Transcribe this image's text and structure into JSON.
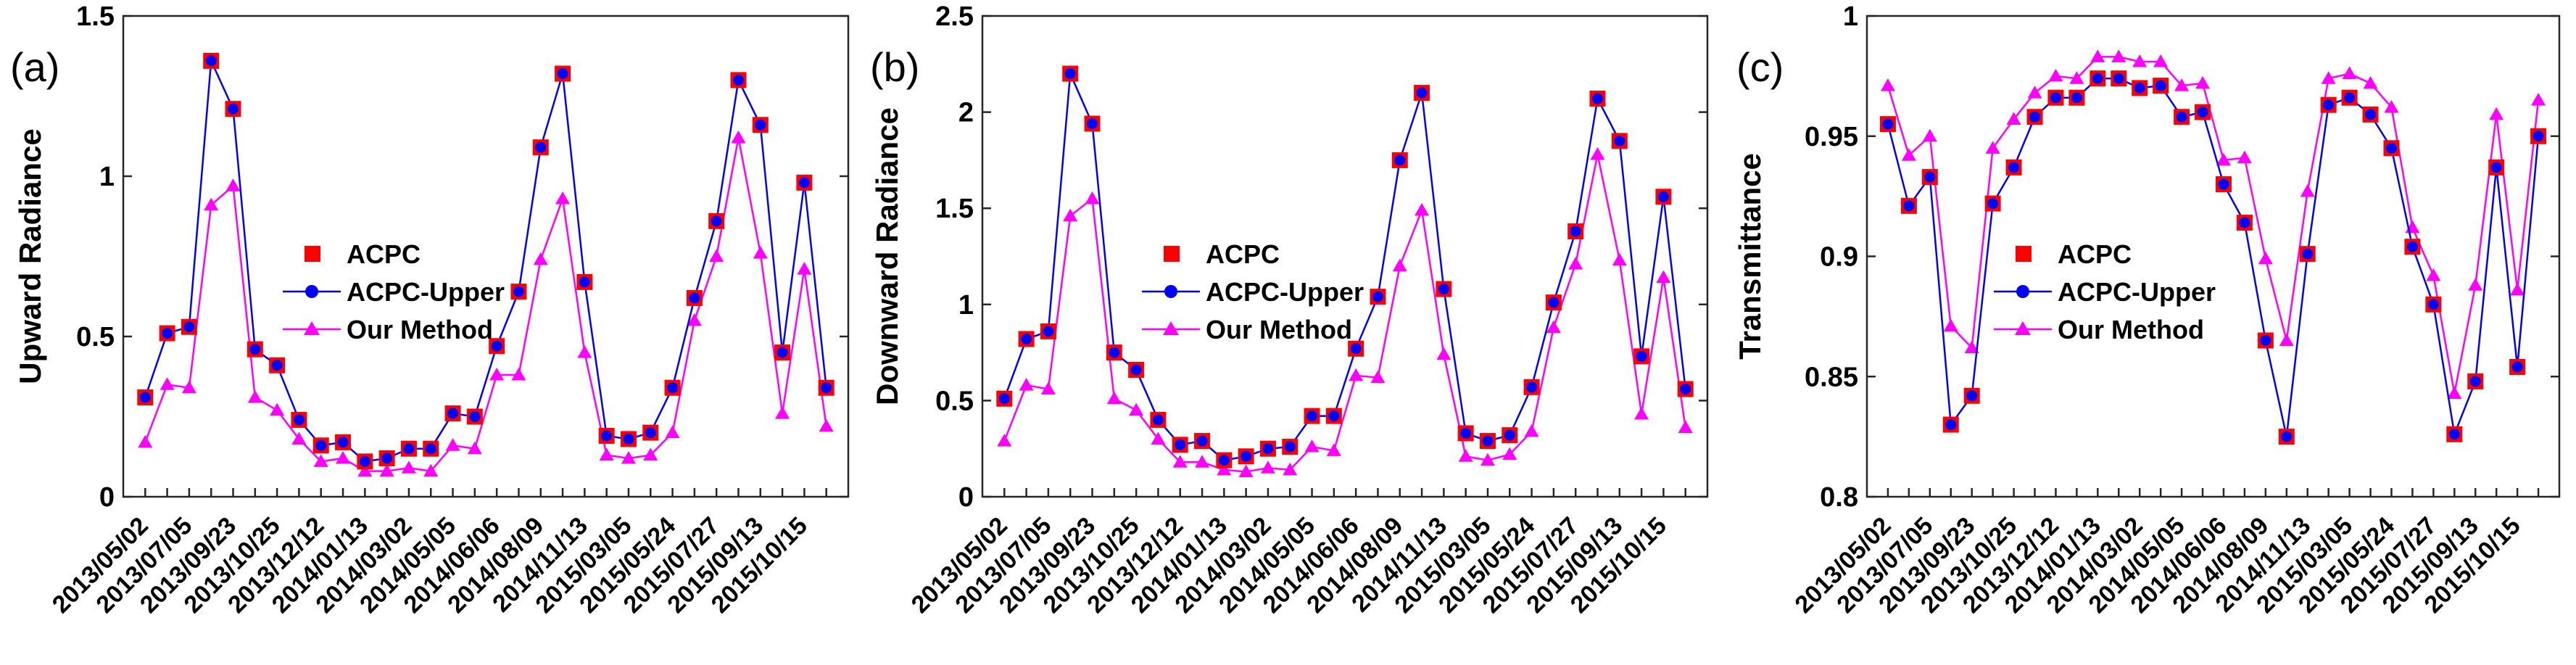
{
  "colors": {
    "acpc": "#ff0000",
    "acpc_upper": "#0000ff",
    "our_method": "#ff00ff",
    "axis": "#262626"
  },
  "chart_data": [
    {
      "type": "line",
      "panel": "(a)",
      "ylabel": "Upward Radiance",
      "ylim": [
        0,
        1.5
      ],
      "yticks": [
        0,
        0.5,
        1,
        1.5
      ],
      "ytick_labels": [
        "0",
        "0.5",
        "1",
        "1.5"
      ],
      "xtick_labels": [
        "2013/05/02",
        "2013/07/05",
        "2013/09/23",
        "2013/10/25",
        "2013/12/12",
        "2014/01/13",
        "2014/03/02",
        "2014/05/05",
        "2014/06/06",
        "2014/08/09",
        "2014/11/13",
        "2015/03/05",
        "2015/05/24",
        "2015/07/27",
        "2015/09/13",
        "2015/10/15"
      ],
      "legend": [
        "ACPC",
        "ACPC-Upper",
        "Our Method"
      ],
      "series": [
        {
          "name": "ACPC",
          "values": [
            0.31,
            0.51,
            0.53,
            1.36,
            1.21,
            0.46,
            0.41,
            0.24,
            0.16,
            0.17,
            0.11,
            0.12,
            0.15,
            0.15,
            0.26,
            0.25,
            0.47,
            0.64,
            1.09,
            1.32,
            0.67,
            0.19,
            0.18,
            0.2,
            0.34,
            0.62,
            0.86,
            1.3,
            1.16,
            0.45,
            0.98,
            0.34
          ]
        },
        {
          "name": "ACPC-Upper",
          "values": [
            0.31,
            0.51,
            0.53,
            1.36,
            1.21,
            0.46,
            0.41,
            0.24,
            0.16,
            0.17,
            0.11,
            0.12,
            0.15,
            0.15,
            0.26,
            0.25,
            0.47,
            0.64,
            1.09,
            1.32,
            0.67,
            0.19,
            0.18,
            0.2,
            0.34,
            0.62,
            0.86,
            1.3,
            1.16,
            0.45,
            0.98,
            0.34
          ]
        },
        {
          "name": "Our Method",
          "values": [
            0.17,
            0.35,
            0.34,
            0.91,
            0.97,
            0.31,
            0.27,
            0.18,
            0.11,
            0.12,
            0.08,
            0.08,
            0.09,
            0.08,
            0.16,
            0.15,
            0.38,
            0.38,
            0.74,
            0.93,
            0.45,
            0.13,
            0.12,
            0.13,
            0.2,
            0.55,
            0.75,
            1.12,
            0.76,
            0.26,
            0.71,
            0.22
          ]
        }
      ]
    },
    {
      "type": "line",
      "panel": "(b)",
      "ylabel": "Downward Radiance",
      "ylim": [
        0,
        2.5
      ],
      "yticks": [
        0,
        0.5,
        1,
        1.5,
        2,
        2.5
      ],
      "ytick_labels": [
        "0",
        "0.5",
        "1",
        "1.5",
        "2",
        "2.5"
      ],
      "xtick_labels": [
        "2013/05/02",
        "2013/07/05",
        "2013/09/23",
        "2013/10/25",
        "2013/12/12",
        "2014/01/13",
        "2014/03/02",
        "2014/05/05",
        "2014/06/06",
        "2014/08/09",
        "2014/11/13",
        "2015/03/05",
        "2015/05/24",
        "2015/07/27",
        "2015/09/13",
        "2015/10/15"
      ],
      "legend": [
        "ACPC",
        "ACPC-Upper",
        "Our Method"
      ],
      "series": [
        {
          "name": "ACPC",
          "values": [
            0.51,
            0.82,
            0.86,
            2.2,
            1.94,
            0.75,
            0.66,
            0.4,
            0.27,
            0.29,
            0.19,
            0.21,
            0.25,
            0.26,
            0.42,
            0.42,
            0.77,
            1.04,
            1.75,
            2.1,
            1.08,
            0.33,
            0.29,
            0.32,
            0.57,
            1.01,
            1.38,
            2.07,
            1.85,
            0.73,
            1.56,
            0.56
          ]
        },
        {
          "name": "ACPC-Upper",
          "values": [
            0.51,
            0.82,
            0.86,
            2.2,
            1.94,
            0.75,
            0.66,
            0.4,
            0.27,
            0.29,
            0.19,
            0.21,
            0.25,
            0.26,
            0.42,
            0.42,
            0.77,
            1.04,
            1.75,
            2.1,
            1.08,
            0.33,
            0.29,
            0.32,
            0.57,
            1.01,
            1.38,
            2.07,
            1.85,
            0.73,
            1.56,
            0.56
          ]
        },
        {
          "name": "Our Method",
          "values": [
            0.29,
            0.58,
            0.56,
            1.46,
            1.55,
            0.51,
            0.45,
            0.3,
            0.18,
            0.18,
            0.14,
            0.13,
            0.15,
            0.14,
            0.26,
            0.24,
            0.63,
            0.62,
            1.2,
            1.49,
            0.74,
            0.21,
            0.19,
            0.22,
            0.34,
            0.88,
            1.21,
            1.78,
            1.23,
            0.43,
            1.14,
            0.36
          ]
        }
      ]
    },
    {
      "type": "line",
      "panel": "(c)",
      "ylabel": "Transmittance",
      "ylim": [
        0.8,
        1.0
      ],
      "yticks": [
        0.8,
        0.85,
        0.9,
        0.95,
        1.0
      ],
      "ytick_labels": [
        "0.8",
        "0.85",
        "0.9",
        "0.95",
        "1"
      ],
      "xtick_labels": [
        "2013/05/02",
        "2013/07/05",
        "2013/09/23",
        "2013/10/25",
        "2013/12/12",
        "2014/01/13",
        "2014/03/02",
        "2014/05/05",
        "2014/06/06",
        "2014/08/09",
        "2014/11/13",
        "2015/03/05",
        "2015/05/24",
        "2015/07/27",
        "2015/09/13",
        "2015/10/15"
      ],
      "legend": [
        "ACPC",
        "ACPC-Upper",
        "Our Method"
      ],
      "series": [
        {
          "name": "ACPC",
          "values": [
            0.955,
            0.921,
            0.933,
            0.83,
            0.842,
            0.922,
            0.937,
            0.958,
            0.966,
            0.966,
            0.974,
            0.974,
            0.97,
            0.971,
            0.958,
            0.96,
            0.93,
            0.914,
            0.865,
            0.825,
            0.901,
            0.963,
            0.966,
            0.959,
            0.945,
            0.904,
            0.88,
            0.826,
            0.848,
            0.937,
            0.854,
            0.95
          ]
        },
        {
          "name": "ACPC-Upper",
          "values": [
            0.955,
            0.921,
            0.933,
            0.83,
            0.842,
            0.922,
            0.937,
            0.958,
            0.966,
            0.966,
            0.974,
            0.974,
            0.97,
            0.971,
            0.958,
            0.96,
            0.93,
            0.914,
            0.865,
            0.825,
            0.901,
            0.963,
            0.966,
            0.959,
            0.945,
            0.904,
            0.88,
            0.826,
            0.848,
            0.937,
            0.854,
            0.95
          ]
        },
        {
          "name": "Our Method",
          "values": [
            0.971,
            0.942,
            0.95,
            0.871,
            0.862,
            0.945,
            0.957,
            0.968,
            0.975,
            0.974,
            0.983,
            0.983,
            0.981,
            0.981,
            0.971,
            0.972,
            0.94,
            0.941,
            0.899,
            0.865,
            0.927,
            0.974,
            0.976,
            0.972,
            0.962,
            0.912,
            0.892,
            0.843,
            0.888,
            0.959,
            0.886,
            0.965
          ]
        }
      ]
    }
  ]
}
